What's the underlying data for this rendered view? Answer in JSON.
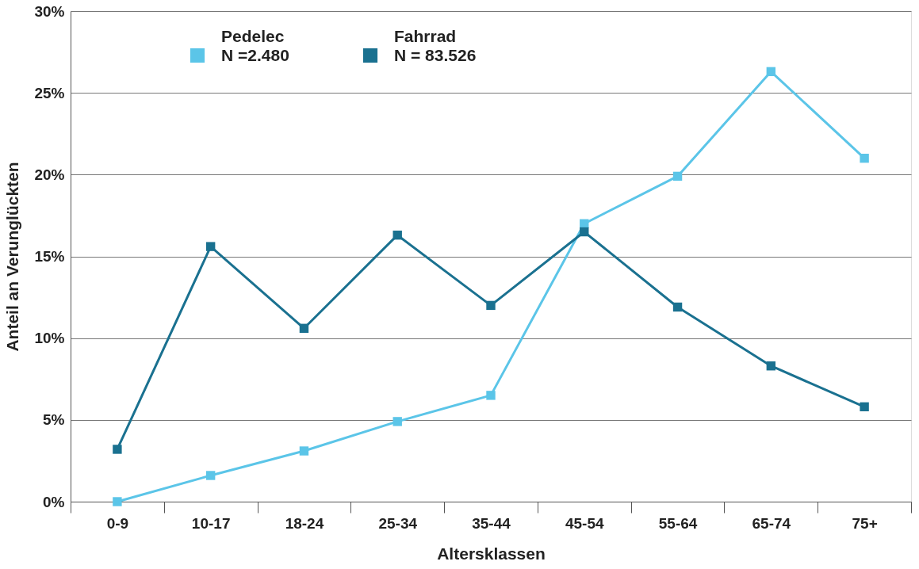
{
  "chart_data": {
    "type": "line",
    "xlabel": "Altersklassen",
    "ylabel": "Anteil an Verunglückten",
    "categories": [
      "0-9",
      "10-17",
      "18-24",
      "25-34",
      "35-44",
      "45-54",
      "55-64",
      "65-74",
      "75+"
    ],
    "series": [
      {
        "name": "Pedelec\nN =2.480",
        "color": "#5bc5e8",
        "values": [
          0,
          1.6,
          3.1,
          4.9,
          6.5,
          17.0,
          19.9,
          26.3,
          21.0
        ]
      },
      {
        "name": "Fahrrad\nN = 83.526",
        "color": "#1a7190",
        "values": [
          3.2,
          15.6,
          10.6,
          16.3,
          12.0,
          16.5,
          11.9,
          8.3,
          5.8
        ]
      }
    ],
    "ylim": [
      0,
      30
    ],
    "yticks": [
      {
        "value": 0,
        "label": "0%"
      },
      {
        "value": 5,
        "label": "5%"
      },
      {
        "value": 10,
        "label": "10%"
      },
      {
        "value": 15,
        "label": "15%"
      },
      {
        "value": 20,
        "label": "20%"
      },
      {
        "value": 25,
        "label": "25%"
      },
      {
        "value": 30,
        "label": "30%"
      }
    ],
    "grid": "y",
    "legend": "top left",
    "marker": "square",
    "line_style": "solid"
  }
}
